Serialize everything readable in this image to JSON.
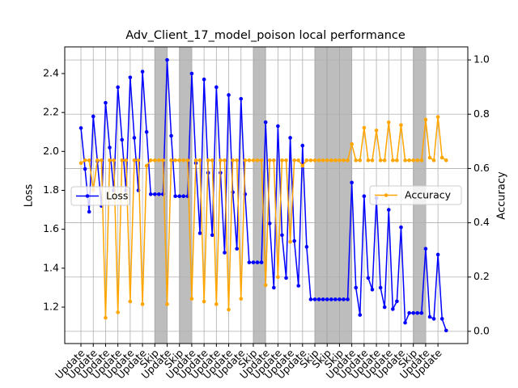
{
  "chart_data": {
    "type": "line",
    "title": "Adv_Client_17_model_poison local performance",
    "y_label": "Loss",
    "y2_label": "Accuracy",
    "categories": [
      "Update",
      null,
      null,
      "Update",
      null,
      null,
      "Update",
      null,
      null,
      "Update",
      null,
      null,
      "Update",
      null,
      null,
      "Update",
      null,
      null,
      "Skip",
      null,
      null,
      "Update",
      null,
      null,
      "Skip",
      null,
      null,
      "Update",
      null,
      null,
      "Update",
      null,
      null,
      "Update",
      null,
      null,
      "Update",
      null,
      null,
      "Update",
      null,
      null,
      "Skip",
      null,
      null,
      "Update",
      null,
      null,
      "Update",
      null,
      null,
      "Update",
      null,
      null,
      "Update",
      null,
      null,
      "Skip",
      null,
      null,
      "Skip",
      null,
      null,
      "Skip",
      null,
      null,
      "Update",
      null,
      null,
      "Update",
      null,
      null,
      "Update",
      null,
      null,
      "Update",
      null,
      null,
      "Update",
      null,
      null,
      "Skip",
      null,
      null,
      "Update",
      null,
      null,
      "Update",
      null,
      null
    ],
    "series": [
      {
        "name": "Loss",
        "color": "#0000ff",
        "values": [
          2.12,
          1.91,
          1.69,
          2.18,
          1.95,
          1.72,
          2.25,
          2.02,
          1.8,
          2.33,
          2.06,
          1.8,
          2.38,
          2.07,
          1.8,
          2.41,
          2.1,
          1.78,
          1.78,
          1.78,
          1.78,
          2.47,
          2.08,
          1.77,
          1.77,
          1.77,
          1.77,
          2.4,
          1.94,
          1.58,
          2.37,
          1.89,
          1.57,
          2.33,
          1.89,
          1.48,
          2.29,
          1.79,
          1.5,
          2.27,
          1.78,
          1.43,
          1.43,
          1.43,
          1.43,
          2.15,
          1.63,
          1.3,
          2.13,
          1.57,
          1.35,
          2.07,
          1.54,
          1.31,
          2.03,
          1.51,
          1.24,
          1.24,
          1.24,
          1.24,
          1.24,
          1.24,
          1.24,
          1.24,
          1.24,
          1.24,
          1.84,
          1.3,
          1.16,
          1.77,
          1.35,
          1.29,
          1.76,
          1.3,
          1.2,
          1.7,
          1.19,
          1.23,
          1.61,
          1.12,
          1.17,
          1.17,
          1.17,
          1.17,
          1.5,
          1.15,
          1.14,
          1.47,
          1.14,
          1.08
        ]
      },
      {
        "name": "Accuracy",
        "color": "#ffa500",
        "axis": "y2",
        "values": [
          0.62,
          0.63,
          0.63,
          0.52,
          0.63,
          0.63,
          0.05,
          0.63,
          0.63,
          0.07,
          0.63,
          0.63,
          0.11,
          0.63,
          0.63,
          0.1,
          0.61,
          0.63,
          0.63,
          0.63,
          0.63,
          0.1,
          0.63,
          0.63,
          0.63,
          0.63,
          0.63,
          0.12,
          0.63,
          0.63,
          0.11,
          0.63,
          0.63,
          0.1,
          0.63,
          0.63,
          0.08,
          0.63,
          0.63,
          0.12,
          0.63,
          0.63,
          0.63,
          0.63,
          0.63,
          0.17,
          0.63,
          0.63,
          0.2,
          0.63,
          0.63,
          0.33,
          0.63,
          0.63,
          0.61,
          0.63,
          0.63,
          0.63,
          0.63,
          0.63,
          0.63,
          0.63,
          0.63,
          0.63,
          0.63,
          0.63,
          0.69,
          0.63,
          0.63,
          0.75,
          0.63,
          0.63,
          0.74,
          0.63,
          0.63,
          0.77,
          0.63,
          0.63,
          0.76,
          0.63,
          0.63,
          0.63,
          0.63,
          0.63,
          0.78,
          0.64,
          0.63,
          0.79,
          0.64,
          0.63
        ]
      }
    ],
    "ylim": [
      1.013,
      2.537
    ],
    "yticks": [
      1.2,
      1.4,
      1.6,
      1.8,
      {
        "value": 2,
        "label": "2.0"
      },
      2.2,
      2.4
    ],
    "y2lim": [
      -0.045,
      1.048
    ],
    "y2ticks": [
      {
        "value": 0,
        "label": "0.0"
      },
      0.2,
      0.4,
      0.6,
      0.8,
      {
        "value": 1,
        "label": "1.0"
      }
    ],
    "grid": true
  }
}
